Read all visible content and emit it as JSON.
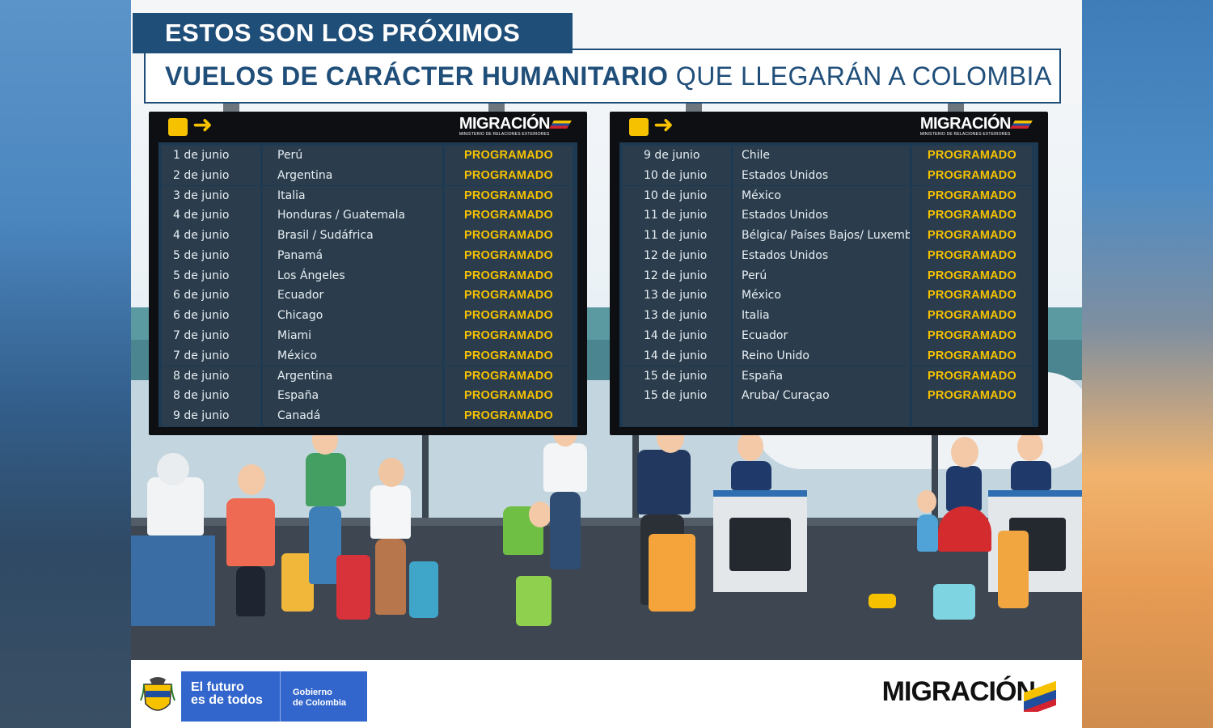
{
  "header": {
    "line1": "ESTOS SON LOS PRÓXIMOS",
    "line2_bold": "VUELOS DE CARÁCTER HUMANITARIO",
    "line2_light": "QUE LLEGARÁN A COLOMBIA"
  },
  "board_logo": {
    "name": "MIGRACIÓN",
    "subtitle": "MINISTERIO DE RELACIONES EXTERIORES"
  },
  "board_left": {
    "rows": [
      {
        "date": "1 de junio",
        "origin": "Perú",
        "status": "PROGRAMADO"
      },
      {
        "date": "2 de junio",
        "origin": "Argentina",
        "status": "PROGRAMADO"
      },
      {
        "date": "3 de junio",
        "origin": "Italia",
        "status": "PROGRAMADO"
      },
      {
        "date": "4 de junio",
        "origin": "Honduras / Guatemala",
        "status": "PROGRAMADO"
      },
      {
        "date": "4 de junio",
        "origin": "Brasil / Sudáfrica",
        "status": "PROGRAMADO"
      },
      {
        "date": "5 de junio",
        "origin": "Panamá",
        "status": "PROGRAMADO"
      },
      {
        "date": "5 de junio",
        "origin": "Los Ángeles",
        "status": "PROGRAMADO"
      },
      {
        "date": "6 de junio",
        "origin": "Ecuador",
        "status": "PROGRAMADO"
      },
      {
        "date": "6 de junio",
        "origin": "Chicago",
        "status": "PROGRAMADO"
      },
      {
        "date": "7 de junio",
        "origin": "Miami",
        "status": "PROGRAMADO"
      },
      {
        "date": "7 de junio",
        "origin": "México",
        "status": "PROGRAMADO"
      },
      {
        "date": "8 de junio",
        "origin": "Argentina",
        "status": "PROGRAMADO"
      },
      {
        "date": "8 de junio",
        "origin": "España",
        "status": "PROGRAMADO"
      },
      {
        "date": "9 de junio",
        "origin": "Canadá",
        "status": "PROGRAMADO"
      }
    ]
  },
  "board_right": {
    "rows": [
      {
        "date": "9 de junio",
        "origin": "Chile",
        "status": "PROGRAMADO"
      },
      {
        "date": "10 de junio",
        "origin": "Estados Unidos",
        "status": "PROGRAMADO"
      },
      {
        "date": "10 de junio",
        "origin": "México",
        "status": "PROGRAMADO"
      },
      {
        "date": "11 de junio",
        "origin": "Estados Unidos",
        "status": "PROGRAMADO"
      },
      {
        "date": "11 de junio",
        "origin": "Bélgica/ Países Bajos/ Luxemburgo",
        "status": "PROGRAMADO"
      },
      {
        "date": "12 de junio",
        "origin": "Estados Unidos",
        "status": "PROGRAMADO"
      },
      {
        "date": "12 de junio",
        "origin": "Perú",
        "status": "PROGRAMADO"
      },
      {
        "date": "13 de junio",
        "origin": "México",
        "status": "PROGRAMADO"
      },
      {
        "date": "13 de junio",
        "origin": "Italia",
        "status": "PROGRAMADO"
      },
      {
        "date": "14 de junio",
        "origin": "Ecuador",
        "status": "PROGRAMADO"
      },
      {
        "date": "14 de junio",
        "origin": "Reino Unido",
        "status": "PROGRAMADO"
      },
      {
        "date": "15 de junio",
        "origin": "España",
        "status": "PROGRAMADO"
      },
      {
        "date": "15 de junio",
        "origin": "Aruba/ Curaçao",
        "status": "PROGRAMADO"
      },
      {
        "date": "",
        "origin": "",
        "status": ""
      }
    ]
  },
  "footer": {
    "slogan_line1": "El futuro",
    "slogan_line2": "es de todos",
    "gov_line1": "Gobierno",
    "gov_line2": "de Colombia",
    "logo": "MIGRACIÓN"
  },
  "colors": {
    "navy": "#1f4e79",
    "status_yellow": "#f6c200",
    "gov_blue": "#3366cc"
  },
  "icons": [
    "flight-arrival-icon",
    "arrow-right-icon",
    "colombia-coat-of-arms-icon",
    "flag-swoosh-icon"
  ]
}
